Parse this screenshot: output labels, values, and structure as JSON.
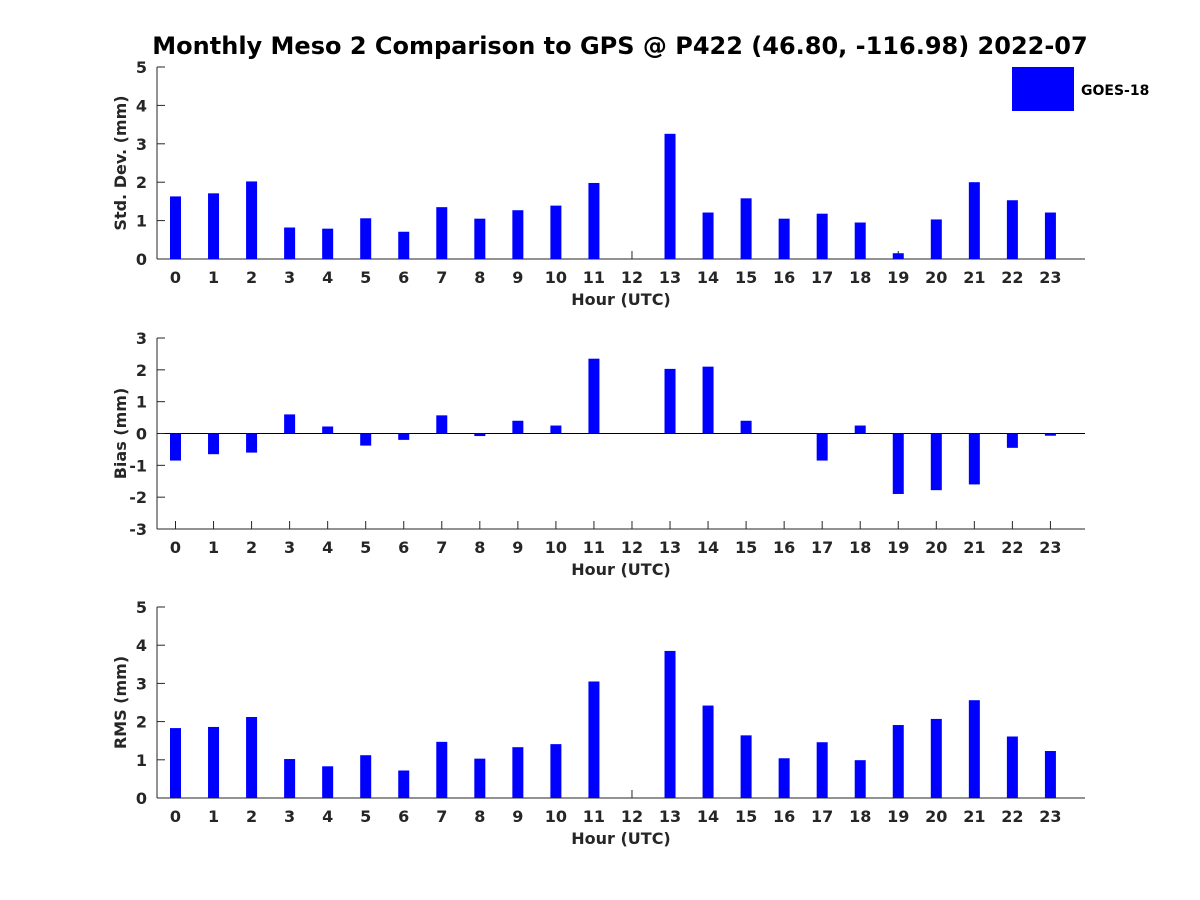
{
  "title": "Monthly Meso 2 Comparison to GPS @ P422 (46.80, -116.98) 2022-07",
  "legend": {
    "label": "GOES-18",
    "color": "#0000ff"
  },
  "chart_data": [
    {
      "type": "bar",
      "ylabel": "Std. Dev. (mm)",
      "xlabel": "Hour (UTC)",
      "ylim": [
        0,
        5
      ],
      "yticks": [
        0,
        1,
        2,
        3,
        4,
        5
      ],
      "categories": [
        "0",
        "1",
        "2",
        "3",
        "4",
        "5",
        "6",
        "7",
        "8",
        "9",
        "10",
        "11",
        "12",
        "13",
        "14",
        "15",
        "16",
        "17",
        "18",
        "19",
        "20",
        "21",
        "22",
        "23"
      ],
      "series": [
        {
          "name": "GOES-18",
          "values": [
            1.63,
            1.71,
            2.02,
            0.82,
            0.79,
            1.06,
            0.71,
            1.35,
            1.05,
            1.27,
            1.39,
            1.98,
            null,
            3.26,
            1.21,
            1.58,
            1.05,
            1.18,
            0.95,
            0.15,
            1.03,
            2.0,
            1.53,
            1.21
          ]
        }
      ]
    },
    {
      "type": "bar",
      "ylabel": "Bias (mm)",
      "xlabel": "Hour (UTC)",
      "ylim": [
        -3,
        3
      ],
      "yticks": [
        -3,
        -2,
        -1,
        0,
        1,
        2,
        3
      ],
      "categories": [
        "0",
        "1",
        "2",
        "3",
        "4",
        "5",
        "6",
        "7",
        "8",
        "9",
        "10",
        "11",
        "12",
        "13",
        "14",
        "15",
        "16",
        "17",
        "18",
        "19",
        "20",
        "21",
        "22",
        "23"
      ],
      "series": [
        {
          "name": "GOES-18",
          "values": [
            -0.85,
            -0.65,
            -0.6,
            0.6,
            0.22,
            -0.38,
            -0.2,
            0.57,
            -0.08,
            0.4,
            0.25,
            2.35,
            null,
            2.03,
            2.1,
            0.4,
            null,
            -0.85,
            0.25,
            -1.9,
            -1.78,
            -1.6,
            -0.45,
            -0.07
          ]
        }
      ]
    },
    {
      "type": "bar",
      "ylabel": "RMS (mm)",
      "xlabel": "Hour (UTC)",
      "ylim": [
        0,
        5
      ],
      "yticks": [
        0,
        1,
        2,
        3,
        4,
        5
      ],
      "categories": [
        "0",
        "1",
        "2",
        "3",
        "4",
        "5",
        "6",
        "7",
        "8",
        "9",
        "10",
        "11",
        "12",
        "13",
        "14",
        "15",
        "16",
        "17",
        "18",
        "19",
        "20",
        "21",
        "22",
        "23"
      ],
      "series": [
        {
          "name": "GOES-18",
          "values": [
            1.83,
            1.86,
            2.12,
            1.02,
            0.83,
            1.12,
            0.72,
            1.47,
            1.03,
            1.33,
            1.41,
            3.05,
            null,
            3.85,
            2.42,
            1.64,
            1.04,
            1.46,
            0.99,
            1.91,
            2.07,
            2.56,
            1.61,
            1.23
          ]
        }
      ]
    }
  ]
}
